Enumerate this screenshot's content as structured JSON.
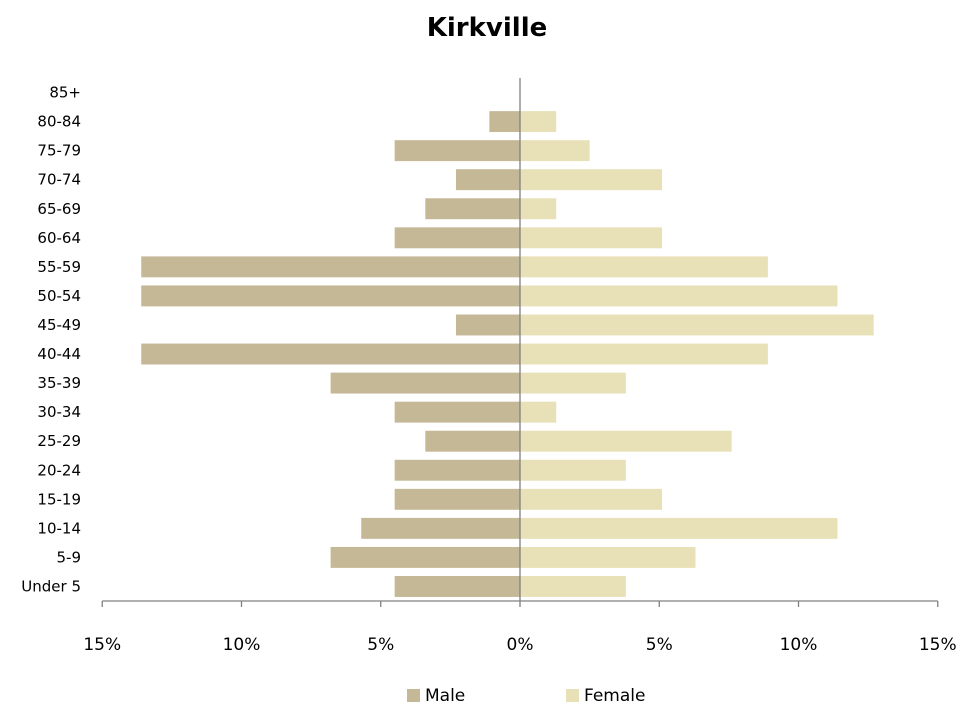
{
  "chart_data": {
    "type": "bar",
    "orientation": "horizontal-population-pyramid",
    "title": "Kirkville",
    "categories": [
      "Under 5",
      "5-9",
      "10-14",
      "15-19",
      "20-24",
      "25-29",
      "30-34",
      "35-39",
      "40-44",
      "45-49",
      "50-54",
      "55-59",
      "60-64",
      "65-69",
      "70-74",
      "75-79",
      "80-84",
      "85+"
    ],
    "series": [
      {
        "name": "Male",
        "color": "#c4b896",
        "values": [
          4.5,
          6.8,
          5.7,
          4.5,
          4.5,
          3.4,
          4.5,
          6.8,
          13.6,
          2.3,
          13.6,
          13.6,
          4.5,
          3.4,
          2.3,
          4.5,
          1.1,
          0
        ]
      },
      {
        "name": "Female",
        "color": "#e8e0b6",
        "values": [
          3.8,
          6.3,
          11.4,
          5.1,
          3.8,
          7.6,
          1.3,
          3.8,
          8.9,
          12.7,
          11.4,
          8.9,
          5.1,
          1.3,
          5.1,
          2.5,
          1.3,
          0
        ]
      }
    ],
    "xticks": [
      "15%",
      "10%",
      "5%",
      "0%",
      "5%",
      "10%",
      "15%"
    ],
    "xlim": [
      -15,
      15
    ],
    "grid": false,
    "legend": "bottom-center"
  }
}
